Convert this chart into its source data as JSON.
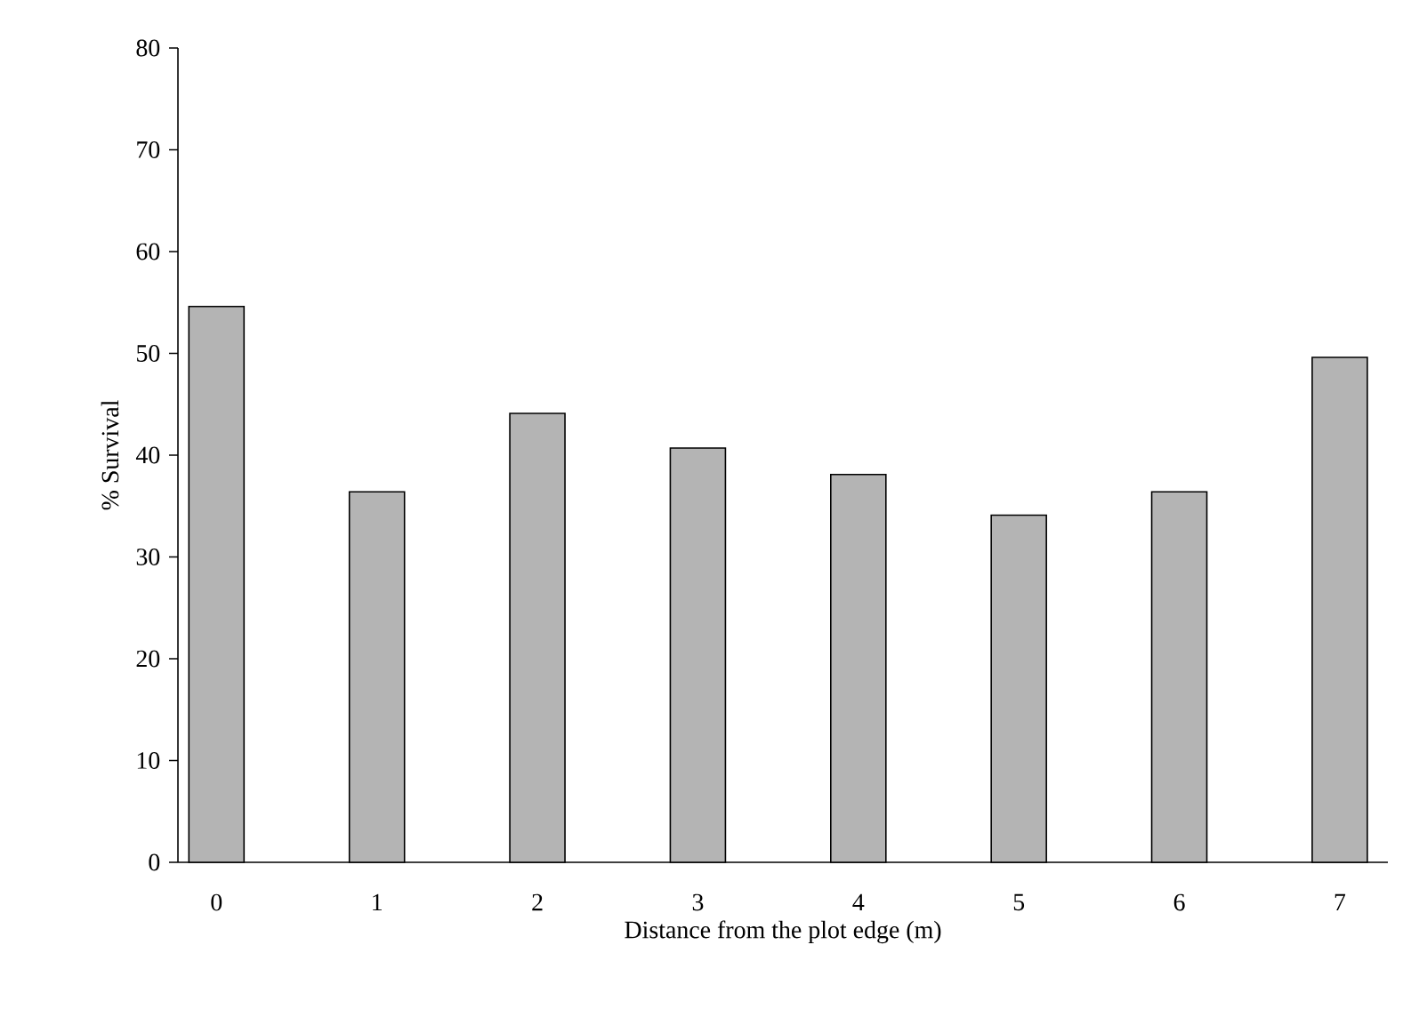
{
  "chart_data": {
    "type": "bar",
    "xlabel": "Distance from the plot edge (m)",
    "ylabel": "% Survival",
    "categories": [
      "0",
      "1",
      "2",
      "3",
      "4",
      "5",
      "6",
      "7"
    ],
    "values": [
      54.6,
      36.4,
      44.1,
      40.7,
      38.1,
      34.1,
      36.4,
      49.6
    ],
    "color": "#b4b4b4",
    "ylim": [
      0,
      80
    ],
    "yticks": [
      0,
      10,
      20,
      30,
      40,
      50,
      60,
      70,
      80
    ],
    "grid": false
  }
}
